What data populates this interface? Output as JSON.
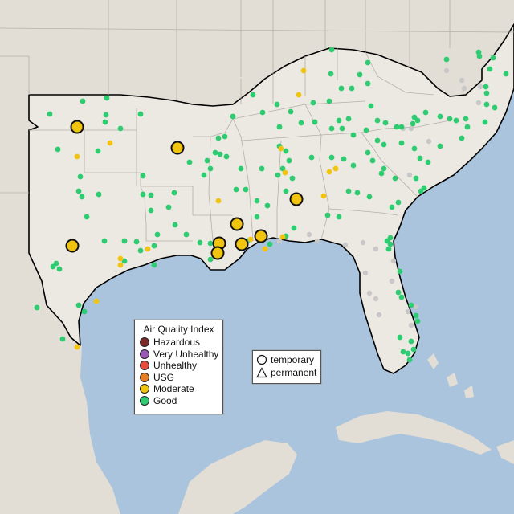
{
  "legend": {
    "title": "Air Quality Index",
    "items": [
      {
        "label": "Hazardous",
        "color": "#7e2a2a"
      },
      {
        "label": "Very Unhealthy",
        "color": "#9b59b6"
      },
      {
        "label": "Unhealthy",
        "color": "#e74c3c"
      },
      {
        "label": "USG",
        "color": "#e67e22"
      },
      {
        "label": "Moderate",
        "color": "#f1c40f"
      },
      {
        "label": "Good",
        "color": "#2ecc71"
      }
    ]
  },
  "type_legend": {
    "temporary": "temporary",
    "permanent": "permanent"
  },
  "colors": {
    "water": "#a9c4dc",
    "land_focus": "#ece8e2",
    "land_outside": "#e2ddd5",
    "border": "#000000",
    "inactive": "#c8c8c8"
  }
}
